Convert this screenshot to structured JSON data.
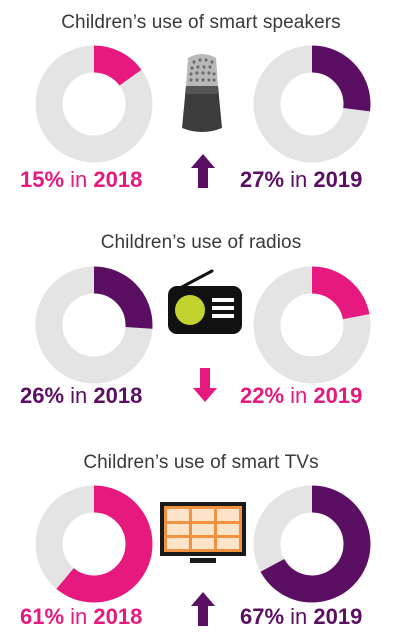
{
  "colors": {
    "pink": "#e6197e",
    "purple": "#5b0f63",
    "track": "#e4e4e4",
    "title": "#3a3a3a"
  },
  "sections": [
    {
      "title": "Children’s use of smart speakers",
      "device_icon": "smart-speaker-icon",
      "trend_icon": "arrow-up-icon",
      "left": {
        "percent": 15,
        "pct_label": "15%",
        "in_label": "in",
        "year": "2018",
        "color": "pink"
      },
      "right": {
        "percent": 27,
        "pct_label": "27%",
        "in_label": "in",
        "year": "2019",
        "color": "purple"
      }
    },
    {
      "title": "Children’s use of radios",
      "device_icon": "radio-icon",
      "trend_icon": "arrow-down-icon",
      "left": {
        "percent": 26,
        "pct_label": "26%",
        "in_label": "in",
        "year": "2018",
        "color": "purple"
      },
      "right": {
        "percent": 22,
        "pct_label": "22%",
        "in_label": "in",
        "year": "2019",
        "color": "pink"
      }
    },
    {
      "title": "Children’s use of smart TVs",
      "device_icon": "smart-tv-icon",
      "trend_icon": "arrow-up-icon",
      "left": {
        "percent": 61,
        "pct_label": "61%",
        "in_label": "in",
        "year": "2018",
        "color": "pink"
      },
      "right": {
        "percent": 67,
        "pct_label": "67%",
        "in_label": "in",
        "year": "2019",
        "color": "purple"
      }
    }
  ],
  "chart_data": [
    {
      "type": "pie",
      "title": "Children’s use of smart speakers",
      "categories": [
        "2018",
        "2019"
      ],
      "values": [
        15,
        27
      ]
    },
    {
      "type": "pie",
      "title": "Children’s use of radios",
      "categories": [
        "2018",
        "2019"
      ],
      "values": [
        26,
        22
      ]
    },
    {
      "type": "pie",
      "title": "Children’s use of smart TVs",
      "categories": [
        "2018",
        "2019"
      ],
      "values": [
        61,
        67
      ]
    }
  ]
}
